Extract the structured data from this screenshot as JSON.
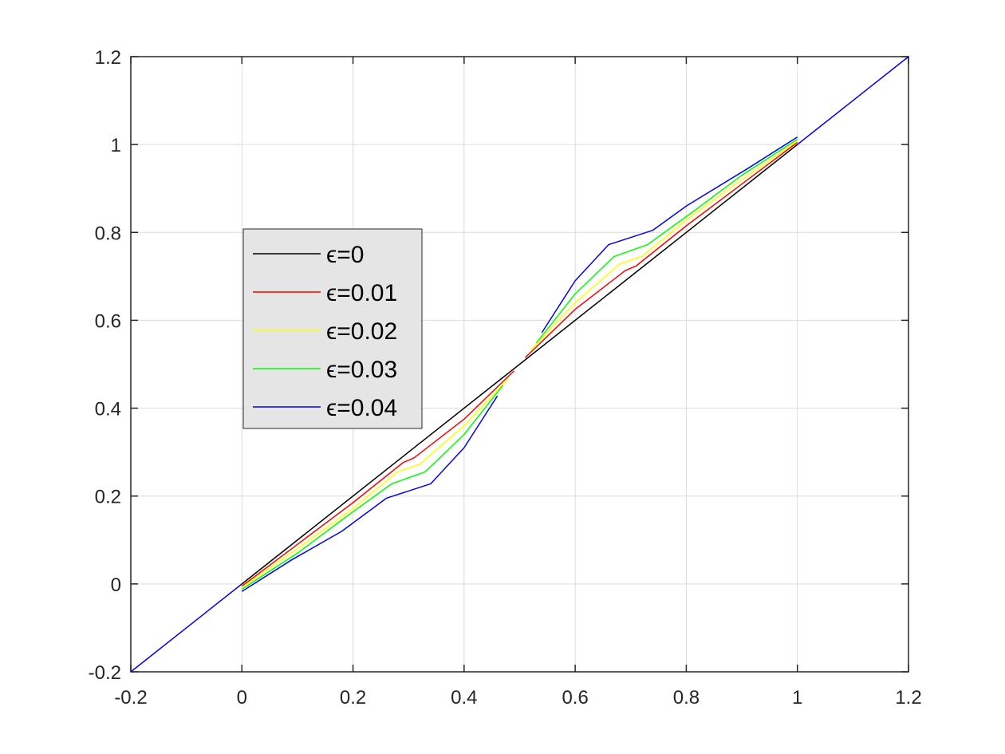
{
  "chart_data": {
    "type": "line",
    "title": "",
    "xlabel": "",
    "ylabel": "",
    "xlim": [
      -0.2,
      1.2
    ],
    "ylim": [
      -0.2,
      1.2
    ],
    "xticks": [
      -0.2,
      0,
      0.2,
      0.4,
      0.6,
      0.8,
      1,
      1.2
    ],
    "yticks": [
      -0.2,
      0,
      0.2,
      0.4,
      0.6,
      0.8,
      1,
      1.2
    ],
    "xtick_labels": [
      "-0.2",
      "0",
      "0.2",
      "0.4",
      "0.6",
      "0.8",
      "1",
      "1.2"
    ],
    "ytick_labels": [
      "-0.2",
      "0",
      "0.2",
      "0.4",
      "0.6",
      "0.8",
      "1",
      "1.2"
    ],
    "grid": true,
    "legend_position": "center-left",
    "legend_background": "#e5e5e5",
    "series": [
      {
        "name": "ϵ=0",
        "color": "#000000",
        "segments": [
          [
            [
              0,
              0
            ],
            [
              0.5,
              0.5
            ]
          ],
          [
            [
              0.5,
              0.5
            ],
            [
              1,
              1
            ]
          ]
        ]
      },
      {
        "name": "ϵ=0.01",
        "color": "#ff0000",
        "segments": [
          [
            [
              0,
              -0.005
            ],
            [
              0.1,
              0.09
            ],
            [
              0.2,
              0.185
            ],
            [
              0.29,
              0.276
            ],
            [
              0.31,
              0.287
            ],
            [
              0.4,
              0.375
            ],
            [
              0.49,
              0.485
            ]
          ],
          [
            [
              0.51,
              0.515
            ],
            [
              0.6,
              0.625
            ],
            [
              0.69,
              0.713
            ],
            [
              0.71,
              0.724
            ],
            [
              0.8,
              0.815
            ],
            [
              0.9,
              0.91
            ],
            [
              1,
              1.005
            ]
          ]
        ]
      },
      {
        "name": "ϵ=0.02",
        "color": "#ffff00",
        "segments": [
          [
            [
              0,
              -0.008
            ],
            [
              0.1,
              0.08
            ],
            [
              0.2,
              0.172
            ],
            [
              0.28,
              0.255
            ],
            [
              0.32,
              0.272
            ],
            [
              0.4,
              0.36
            ],
            [
              0.48,
              0.468
            ]
          ],
          [
            [
              0.52,
              0.532
            ],
            [
              0.6,
              0.64
            ],
            [
              0.68,
              0.728
            ],
            [
              0.72,
              0.745
            ],
            [
              0.8,
              0.828
            ],
            [
              0.9,
              0.92
            ],
            [
              1,
              1.008
            ]
          ]
        ]
      },
      {
        "name": "ϵ=0.03",
        "color": "#00ff00",
        "segments": [
          [
            [
              0,
              -0.012
            ],
            [
              0.1,
              0.07
            ],
            [
              0.19,
              0.155
            ],
            [
              0.27,
              0.228
            ],
            [
              0.33,
              0.255
            ],
            [
              0.4,
              0.34
            ],
            [
              0.47,
              0.452
            ]
          ],
          [
            [
              0.53,
              0.548
            ],
            [
              0.6,
              0.66
            ],
            [
              0.67,
              0.745
            ],
            [
              0.73,
              0.772
            ],
            [
              0.81,
              0.845
            ],
            [
              0.9,
              0.93
            ],
            [
              1,
              1.012
            ]
          ]
        ]
      },
      {
        "name": "ϵ=0.04",
        "color": "#0000ff",
        "segments": [
          [
            [
              -0.2,
              -0.2
            ],
            [
              0,
              0
            ]
          ],
          [
            [
              0,
              -0.017
            ],
            [
              0.09,
              0.055
            ],
            [
              0.18,
              0.12
            ],
            [
              0.26,
              0.195
            ],
            [
              0.34,
              0.228
            ],
            [
              0.4,
              0.31
            ],
            [
              0.46,
              0.428
            ]
          ],
          [
            [
              0.54,
              0.572
            ],
            [
              0.6,
              0.69
            ],
            [
              0.66,
              0.772
            ],
            [
              0.74,
              0.805
            ],
            [
              0.8,
              0.86
            ],
            [
              0.91,
              0.945
            ],
            [
              1,
              1.017
            ]
          ],
          [
            [
              1,
              1
            ],
            [
              1.2,
              1.2
            ]
          ]
        ]
      }
    ]
  }
}
